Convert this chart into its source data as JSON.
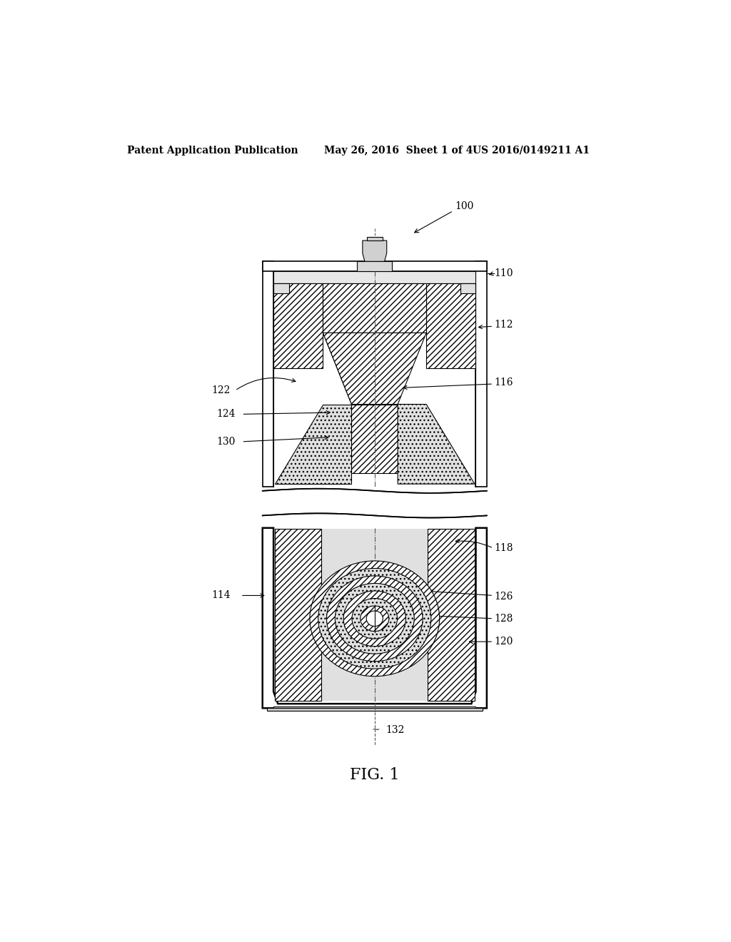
{
  "header_left": "Patent Application Publication",
  "header_mid": "May 26, 2016  Sheet 1 of 4",
  "header_right": "US 2016/0149211 A1",
  "fig_label": "FIG. 1",
  "bg_color": "#ffffff",
  "label_100": "100",
  "label_110": "110",
  "label_112": "112",
  "label_114": "114",
  "label_116": "116",
  "label_118": "118",
  "label_120": "120",
  "label_122": "122",
  "label_124": "124",
  "label_126": "126",
  "label_128": "128",
  "label_130": "130",
  "label_132": "132"
}
